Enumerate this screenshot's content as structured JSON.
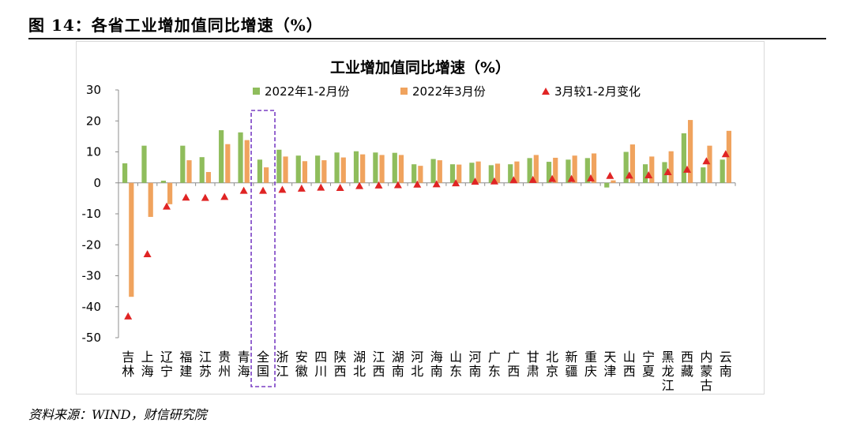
{
  "figure": {
    "label": "图 14：各省工业增加值同比增速（%）",
    "source": "资料来源：WIND，财信研究院"
  },
  "colors": {
    "series1": "#8fbd5c",
    "series2": "#f0a35e",
    "series3": "#e02424",
    "highlight": "#7a3fc4"
  },
  "chart_data": {
    "type": "bar",
    "title": "工业增加值同比增速（%）",
    "xlabel": "",
    "ylabel": "",
    "ylim": [
      -50,
      30
    ],
    "yticks": [
      30,
      20,
      10,
      0,
      -10,
      -20,
      -30,
      -40,
      -50
    ],
    "grid": false,
    "legend_position": "top",
    "highlighted_category": "全国",
    "categories": [
      "吉林",
      "上海",
      "辽宁",
      "福建",
      "江苏",
      "贵州",
      "青海",
      "全国",
      "浙江",
      "安徽",
      "四川",
      "陕西",
      "湖北",
      "江西",
      "湖南",
      "河北",
      "海南",
      "山东",
      "河南",
      "广东",
      "广西",
      "甘肃",
      "北京",
      "新疆",
      "重庆",
      "天津",
      "山西",
      "宁夏",
      "黑龙江",
      "西藏",
      "内蒙古",
      "云南"
    ],
    "series": [
      {
        "name": "2022年1-2月份",
        "kind": "bar",
        "values": [
          6.3,
          12.0,
          0.7,
          12.0,
          8.3,
          17.0,
          16.3,
          7.5,
          10.7,
          8.8,
          8.8,
          9.8,
          10.2,
          9.8,
          9.7,
          6.0,
          7.7,
          6.0,
          6.5,
          5.7,
          6.0,
          8.0,
          6.8,
          7.5,
          8.0,
          -1.5,
          10.0,
          6.0,
          6.7,
          16.0,
          5.0,
          7.5
        ],
        "color": "#8fbd5c"
      },
      {
        "name": "2022年3月份",
        "kind": "bar",
        "values": [
          -36.8,
          -11.0,
          -6.9,
          7.3,
          3.5,
          12.5,
          13.8,
          5.0,
          8.5,
          7.0,
          7.3,
          8.2,
          9.2,
          9.0,
          9.0,
          5.5,
          7.3,
          5.9,
          6.9,
          6.2,
          6.9,
          9.0,
          8.1,
          8.8,
          9.5,
          0.8,
          12.4,
          8.5,
          10.2,
          20.3,
          12.0,
          16.8
        ],
        "color": "#f0a35e"
      },
      {
        "name": "3月较1-2月变化",
        "kind": "marker",
        "values": [
          -43.1,
          -23.0,
          -7.6,
          -4.7,
          -4.8,
          -4.5,
          -2.5,
          -2.5,
          -2.2,
          -1.8,
          -1.5,
          -1.6,
          -1.0,
          -0.8,
          -0.7,
          -0.5,
          -0.4,
          -0.1,
          0.4,
          0.5,
          0.9,
          1.0,
          1.3,
          1.3,
          1.5,
          2.3,
          2.4,
          2.5,
          3.5,
          4.3,
          7.0,
          9.3
        ],
        "color": "#e02424"
      }
    ]
  }
}
